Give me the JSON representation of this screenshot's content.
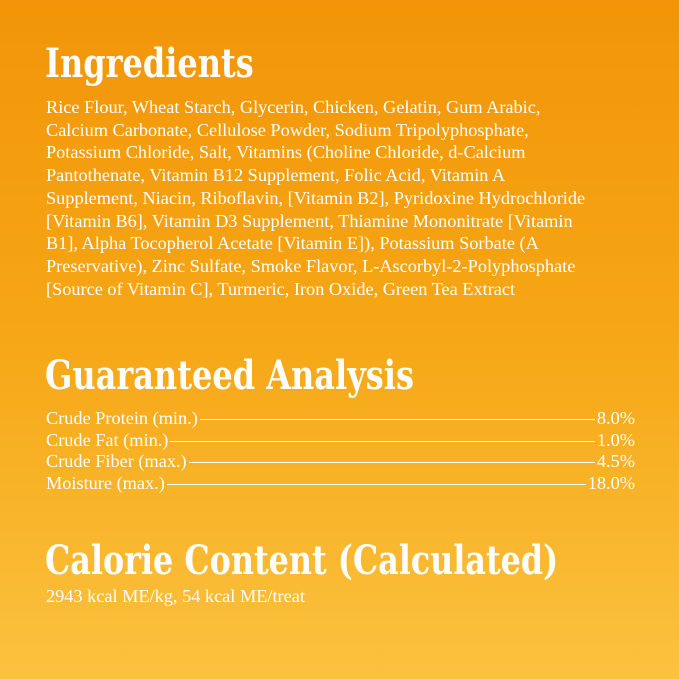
{
  "ingredients": {
    "heading": "Ingredients",
    "lines": [
      "Rice Flour, Wheat Starch, Glycerin, Chicken, Gelatin, Gum Arabic,",
      "Calcium Carbonate, Cellulose Powder, Sodium Tripolyphosphate,",
      "Potassium Chloride, Salt, Vitamins (Choline Chloride, d-Calcium",
      "Pantothenate, Vitamin B12 Supplement, Folic Acid, Vitamin A",
      "Supplement, Niacin, Riboflavin, [Vitamin B2], Pyridoxine Hydrochloride",
      "[Vitamin B6], Vitamin D3 Supplement, Thiamine Mononitrate [Vitamin",
      "B1], Alpha Tocopherol Acetate [Vitamin E]), Potassium Sorbate (A",
      "Preservative), Zinc Sulfate, Smoke Flavor, L-Ascorbyl-2-Polyphosphate",
      "[Source of Vitamin C], Turmeric, Iron Oxide, Green Tea Extract"
    ]
  },
  "analysis": {
    "heading": "Guaranteed Analysis",
    "rows": [
      {
        "label": "Crude Protein (min.)",
        "value": "8.0%"
      },
      {
        "label": "Crude Fat (min.)",
        "value": "1.0%"
      },
      {
        "label": "Crude Fiber (max.)",
        "value": "4.5%"
      },
      {
        "label": "Moisture (max.)",
        "value": "18.0%"
      }
    ]
  },
  "calorie": {
    "heading": "Calorie Content (Calculated)",
    "text": "2943 kcal ME/kg, 54 kcal ME/treat"
  },
  "colors": {
    "background_top": "#F29508",
    "background_bottom": "#FBC23F",
    "text": "#FFFFFF"
  }
}
